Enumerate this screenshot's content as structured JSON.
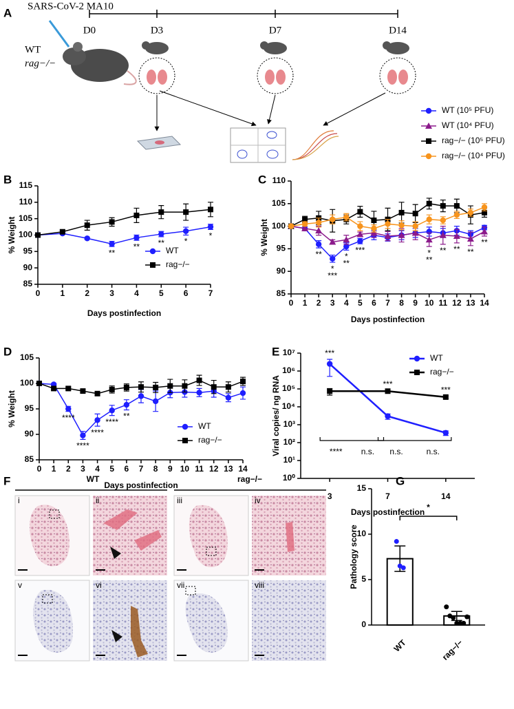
{
  "diagram": {
    "panel": "A",
    "infection": "SARS-CoV-2 MA10",
    "timepoints": [
      "D0",
      "D3",
      "D7",
      "D14"
    ],
    "groups": [
      "WT",
      "rag−/−"
    ]
  },
  "micrographs": {
    "panel": "F",
    "groups": [
      "WT",
      "rag−/−"
    ],
    "panels": [
      "i",
      "ii",
      "iii",
      "iv",
      "v",
      "vi",
      "vii",
      "viii"
    ]
  },
  "chart_data": [
    {
      "panel": "B",
      "type": "line",
      "xlabel": "Days postinfection",
      "ylabel": "% Weight",
      "x": [
        0,
        1,
        2,
        3,
        4,
        5,
        6,
        7
      ],
      "xlim": [
        0,
        7
      ],
      "xticks": [
        0,
        1,
        2,
        3,
        4,
        5,
        6,
        7
      ],
      "ylim": [
        85,
        115
      ],
      "yticks": [
        85,
        90,
        95,
        100,
        105,
        110,
        115
      ],
      "legend": "lower-right",
      "annotation_position": "below",
      "series": [
        {
          "name": "WT",
          "color": "#1f1fff",
          "marker": "circle",
          "values": [
            100,
            100.5,
            99,
            97.3,
            99.2,
            100.3,
            101.2,
            102.5
          ],
          "errors": [
            0.3,
            0.3,
            0.3,
            0.8,
            0.8,
            0.8,
            1.2,
            0.8
          ]
        },
        {
          "name": "rag−/−",
          "color": "#000000",
          "marker": "square",
          "values": [
            100,
            101,
            103,
            104,
            106,
            107,
            107,
            107.8
          ],
          "errors": [
            0.3,
            0.5,
            1.5,
            1.3,
            2.2,
            2,
            2.5,
            2.2
          ]
        }
      ],
      "annotations": [
        {
          "x": 3,
          "lines": [
            "**"
          ]
        },
        {
          "x": 4,
          "lines": [
            "**"
          ]
        },
        {
          "x": 5,
          "lines": [
            "**"
          ]
        },
        {
          "x": 6,
          "lines": [
            "*"
          ]
        },
        {
          "x": 7,
          "lines": [
            "*"
          ]
        }
      ]
    },
    {
      "panel": "C",
      "type": "line",
      "xlabel": "Days postinfection",
      "ylabel": "% Weight",
      "x": [
        0,
        1,
        2,
        3,
        4,
        5,
        6,
        7,
        8,
        9,
        10,
        11,
        12,
        13,
        14
      ],
      "xlim": [
        0,
        14
      ],
      "xticks": [
        0,
        1,
        2,
        3,
        4,
        5,
        6,
        7,
        8,
        9,
        10,
        11,
        12,
        13,
        14
      ],
      "ylim": [
        85,
        110
      ],
      "yticks": [
        85,
        90,
        95,
        100,
        105,
        110
      ],
      "legend": "outside-right",
      "annotation_position": "below",
      "series": [
        {
          "name": "WT (10⁵ PFU)",
          "color": "#1f1fff",
          "marker": "circle",
          "values": [
            100,
            99.5,
            96,
            92.8,
            95.5,
            96.7,
            98,
            97.5,
            98,
            98.5,
            98.8,
            98.5,
            99,
            98.2,
            99.7
          ],
          "errors": [
            0.3,
            0.5,
            0.8,
            0.8,
            0.8,
            0.6,
            1,
            0.8,
            1,
            1,
            1,
            1,
            1,
            0.8,
            0.5
          ]
        },
        {
          "name": "WT (10⁴ PFU)",
          "color": "#8b1a8b",
          "marker": "triangle",
          "values": [
            100,
            99.5,
            99,
            96.5,
            97,
            98.2,
            98.5,
            97.8,
            98,
            98.5,
            97,
            98,
            97.8,
            97.2,
            98.8
          ],
          "errors": [
            0.3,
            0.5,
            1,
            0.5,
            1,
            0.5,
            1,
            1,
            1.5,
            1.5,
            1.5,
            2,
            1.5,
            1.5,
            1
          ]
        },
        {
          "name": "rag−/− (10⁵ PFU)",
          "color": "#000000",
          "marker": "square",
          "values": [
            100,
            101.5,
            101.8,
            101.2,
            101.5,
            103.2,
            101.3,
            101.5,
            103,
            102.8,
            105,
            104.5,
            104.5,
            102.5,
            103
          ],
          "errors": [
            0.3,
            0.7,
            1.5,
            2.5,
            1,
            1.2,
            2,
            2.5,
            2.3,
            2,
            1.2,
            1.3,
            1.5,
            2,
            1
          ]
        },
        {
          "name": "rag−/− (10⁴ PFU)",
          "color": "#f7941d",
          "marker": "circle",
          "values": [
            100,
            100.5,
            100.8,
            101.5,
            102,
            100,
            99.5,
            100.5,
            100.2,
            100,
            101.5,
            101.3,
            102.5,
            103,
            104.2
          ],
          "errors": [
            0.3,
            0.5,
            1,
            1,
            0.8,
            1,
            0.8,
            1,
            1,
            1,
            1,
            0.8,
            0.8,
            0.8,
            0.8
          ]
        }
      ],
      "annotations": [
        {
          "x": 2,
          "lines": [
            "**"
          ]
        },
        {
          "x": 3,
          "lines": [
            "*",
            "***"
          ]
        },
        {
          "x": 4,
          "lines": [
            "*",
            "**"
          ]
        },
        {
          "x": 5,
          "lines": [
            "***"
          ]
        },
        {
          "x": 10,
          "lines": [
            "*",
            "**"
          ]
        },
        {
          "x": 11,
          "lines": [
            "**"
          ]
        },
        {
          "x": 12,
          "lines": [
            "**"
          ]
        },
        {
          "x": 13,
          "lines": [
            "**"
          ]
        },
        {
          "x": 14,
          "lines": [
            "**"
          ]
        }
      ]
    },
    {
      "panel": "D",
      "type": "line",
      "xlabel": "Days postinfection",
      "ylabel": "% Weight",
      "x": [
        0,
        1,
        2,
        3,
        4,
        5,
        6,
        7,
        8,
        9,
        10,
        11,
        12,
        13,
        14
      ],
      "xlim": [
        0,
        14
      ],
      "xticks": [
        0,
        1,
        2,
        3,
        4,
        5,
        6,
        7,
        8,
        9,
        10,
        11,
        12,
        13,
        14
      ],
      "ylim": [
        85,
        105
      ],
      "yticks": [
        85,
        90,
        95,
        100,
        105
      ],
      "legend": "lower-right",
      "annotation_position": "below",
      "series": [
        {
          "name": "WT",
          "color": "#1f1fff",
          "marker": "circle",
          "values": [
            100,
            99.8,
            95,
            89.8,
            92.8,
            94.7,
            95.8,
            97.5,
            96.5,
            98.2,
            98.3,
            98.2,
            98.5,
            97.2,
            98.1
          ],
          "errors": [
            0.2,
            0.2,
            0.5,
            0.8,
            1.2,
            1,
            1,
            1.3,
            2,
            1,
            1,
            0.8,
            1.2,
            0.8,
            1.2
          ]
        },
        {
          "name": "rag−/−",
          "color": "#000000",
          "marker": "square",
          "values": [
            100,
            99,
            99,
            98.5,
            98,
            98.8,
            99.2,
            99.3,
            99.2,
            99.5,
            99.5,
            100.6,
            99.3,
            99.3,
            100.4
          ],
          "errors": [
            0.2,
            0.3,
            0.3,
            0.3,
            0.3,
            0.7,
            0.7,
            1,
            1,
            1.3,
            1.2,
            1,
            1.3,
            1,
            0.8
          ]
        }
      ],
      "annotations": [
        {
          "x": 2,
          "lines": [
            "****"
          ]
        },
        {
          "x": 3,
          "lines": [
            "****"
          ]
        },
        {
          "x": 4,
          "lines": [
            "****"
          ]
        },
        {
          "x": 5,
          "lines": [
            "****"
          ]
        },
        {
          "x": 6,
          "lines": [
            "**"
          ]
        }
      ]
    },
    {
      "panel": "E",
      "type": "line",
      "xlabel": "Days postinfection",
      "ylabel": "Viral copies/ ng RNA",
      "log_y": true,
      "categories": [
        "3",
        "7",
        "14"
      ],
      "ylim": [
        1,
        10000000
      ],
      "yticks": [
        {
          "value": 1,
          "label": "10⁰"
        },
        {
          "value": 10,
          "label": "10¹"
        },
        {
          "value": 100,
          "label": "10²"
        },
        {
          "value": 1000,
          "label": "10³"
        },
        {
          "value": 10000,
          "label": "10⁴"
        },
        {
          "value": 100000,
          "label": "10⁵"
        },
        {
          "value": 1000000,
          "label": "10⁶"
        },
        {
          "value": 10000000,
          "label": "10⁷"
        }
      ],
      "legend": "top-right",
      "annotation_position": "above",
      "series": [
        {
          "name": "WT",
          "color": "#1f1fff",
          "marker": "circle",
          "values": [
            2500000,
            3000,
            350
          ],
          "errors": [
            2000000,
            1000,
            100
          ]
        },
        {
          "name": "rag−/−",
          "color": "#000000",
          "marker": "square",
          "values": [
            75000,
            75000,
            35000
          ],
          "errors": [
            30000,
            10000,
            5000
          ]
        }
      ],
      "annotations": [
        {
          "x": "3",
          "lines": [
            "***"
          ]
        },
        {
          "x": "7",
          "lines": [
            "***"
          ]
        },
        {
          "x": "14",
          "lines": [
            "***"
          ]
        }
      ],
      "brackets": [
        {
          "from": "3",
          "to": "7",
          "labels": [
            {
              "text": "****",
              "color": "#1f1fff"
            },
            {
              "text": "n.s.",
              "color": "#000000"
            }
          ]
        },
        {
          "from": "7",
          "to": "14",
          "labels": [
            {
              "text": "n.s.",
              "color": "#1f1fff"
            },
            {
              "text": "n.s.",
              "color": "#000000"
            }
          ]
        }
      ]
    },
    {
      "panel": "G",
      "type": "bar",
      "ylabel": "Pathology score",
      "categories": [
        "WT",
        "rag−/−"
      ],
      "values": [
        7.3,
        1.0
      ],
      "errors": [
        1.4,
        0.5
      ],
      "color": "#ffffff",
      "points": [
        [
          9.2,
          6.5,
          6.3
        ],
        [
          2,
          1,
          0.8,
          0.2,
          0.2,
          0.2,
          0.9
        ]
      ],
      "point_colors": [
        "#1f1fff",
        "#000000"
      ],
      "ylim": [
        0,
        15
      ],
      "yticks": [
        0,
        5,
        10,
        15
      ],
      "brackets": [
        {
          "from": "WT",
          "to": "rag−/−",
          "labels": [
            {
              "text": "*",
              "color": "#000000"
            }
          ]
        }
      ]
    }
  ]
}
